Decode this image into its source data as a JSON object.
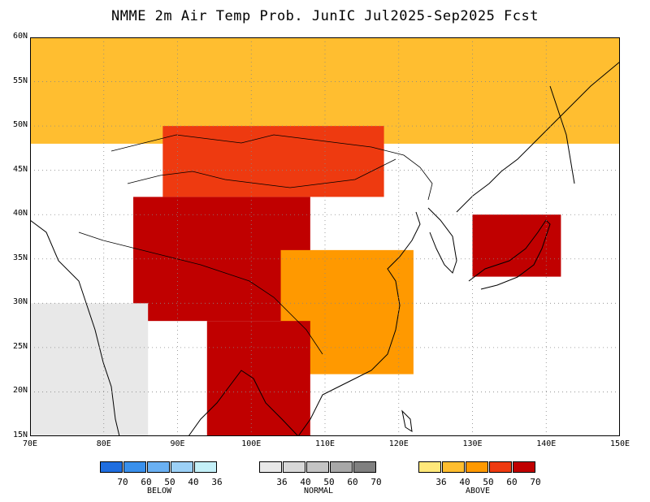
{
  "title": "NMME 2m Air Temp Prob. JunIC  Jul2025-Sep2025 Fcst",
  "map": {
    "lon_range": [
      70,
      150
    ],
    "lat_range": [
      15,
      60
    ],
    "lon_ticks": [
      "70E",
      "80E",
      "90E",
      "100E",
      "110E",
      "120E",
      "130E",
      "140E",
      "150E"
    ],
    "lat_ticks": [
      "60N",
      "55N",
      "50N",
      "45N",
      "40N",
      "35N",
      "30N",
      "25N",
      "20N",
      "15N"
    ],
    "grid": "dotted",
    "region_shading": [
      {
        "name": "north",
        "category": "above",
        "level": 40,
        "lon": [
          70,
          150
        ],
        "lat": [
          48,
          60
        ]
      },
      {
        "name": "mongolia",
        "category": "above",
        "level": 60,
        "lon": [
          88,
          118
        ],
        "lat": [
          42,
          50
        ]
      },
      {
        "name": "tibet-core",
        "category": "above",
        "level": 70,
        "lon": [
          84,
          108
        ],
        "lat": [
          28,
          42
        ]
      },
      {
        "name": "south-china",
        "category": "above",
        "level": 50,
        "lon": [
          104,
          122
        ],
        "lat": [
          22,
          36
        ]
      },
      {
        "name": "indochina",
        "category": "above",
        "level": 70,
        "lon": [
          94,
          108
        ],
        "lat": [
          15,
          28
        ]
      },
      {
        "name": "japan",
        "category": "above",
        "level": 70,
        "lon": [
          130,
          142
        ],
        "lat": [
          33,
          40
        ]
      },
      {
        "name": "india",
        "category": "normal",
        "level": 36,
        "lon": [
          70,
          86
        ],
        "lat": [
          15,
          30
        ]
      }
    ]
  },
  "legend": {
    "below": {
      "label": "BELOW",
      "colors": [
        "#1f6ee0",
        "#3a90ec",
        "#6ab0f2",
        "#9cd0f6",
        "#c4f0f8"
      ],
      "ticks": [
        "70",
        "60",
        "50",
        "40",
        "36"
      ]
    },
    "normal": {
      "label": "NORMAL",
      "colors": [
        "#e8e8e8",
        "#d8d8d8",
        "#c4c4c4",
        "#a8a8a8",
        "#808080"
      ],
      "ticks": [
        "36",
        "40",
        "50",
        "60",
        "70"
      ]
    },
    "above": {
      "label": "ABOVE",
      "colors": [
        "#ffe87a",
        "#ffbe30",
        "#ff9900",
        "#ee3a10",
        "#c00000"
      ],
      "ticks": [
        "36",
        "40",
        "50",
        "60",
        "70"
      ]
    }
  }
}
